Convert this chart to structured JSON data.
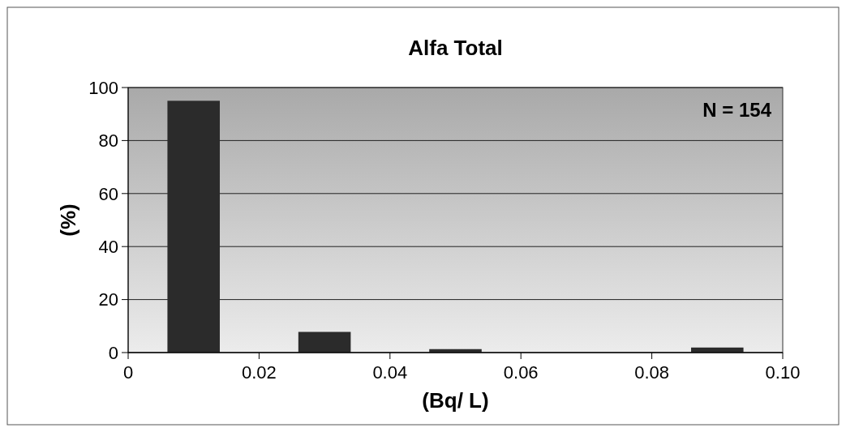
{
  "chart_data": {
    "type": "bar",
    "title": "Alfa Total",
    "xlabel": "(Bq/ L)",
    "ylabel": "(%)",
    "x": [
      0.01,
      0.03,
      0.05,
      0.09
    ],
    "values": [
      95,
      7.8,
      1.3,
      1.9
    ],
    "color": "#2b2b2b",
    "xlim": [
      0,
      0.1
    ],
    "xticks": [
      0,
      0.02,
      0.04,
      0.06,
      0.08,
      {
        "value": 0.1,
        "label": "0.10"
      }
    ],
    "ylim": [
      0,
      100
    ],
    "yticks": [
      0,
      20,
      40,
      60,
      80,
      100
    ],
    "grid": "y",
    "annotations": [
      "N = 154"
    ]
  }
}
